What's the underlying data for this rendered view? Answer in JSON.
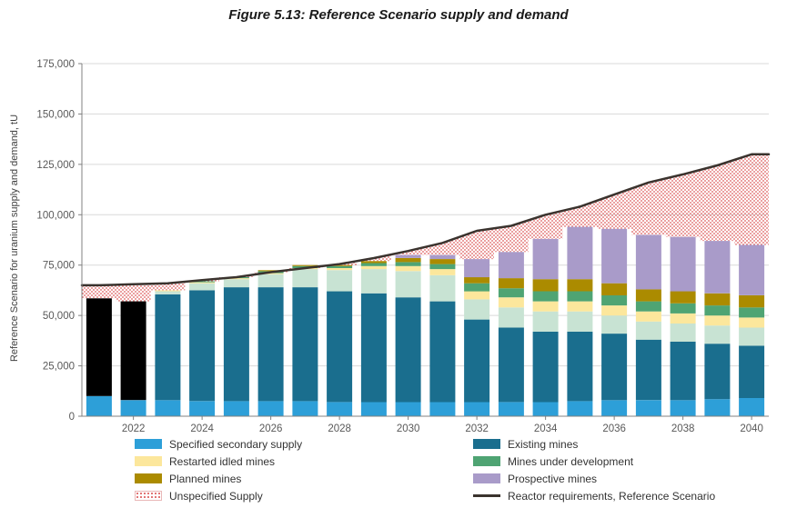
{
  "chart_data": {
    "type": "bar",
    "stacked": true,
    "title": "Figure 5.13: Reference Scenario supply and demand",
    "ylabel": "Reference Scenario for uranium supply and demand, tU",
    "ylim": [
      0,
      175000
    ],
    "grid": true,
    "ytick_values": [
      0,
      25000,
      50000,
      75000,
      100000,
      125000,
      150000,
      175000
    ],
    "ytick_labels": [
      "0",
      "25,000",
      "50,000",
      "75,000",
      "100,000",
      "125,000",
      "150,000",
      "175,000"
    ],
    "years": [
      2021,
      2022,
      2023,
      2024,
      2025,
      2026,
      2027,
      2028,
      2029,
      2030,
      2031,
      2032,
      2033,
      2034,
      2035,
      2036,
      2037,
      2038,
      2039,
      2040
    ],
    "xtick_years": [
      2022,
      2024,
      2026,
      2028,
      2030,
      2032,
      2034,
      2036,
      2038,
      2040
    ],
    "series": [
      {
        "name": "Specified secondary supply",
        "color": "#2D9FD8",
        "values": [
          10000,
          8000,
          8000,
          7500,
          7500,
          7500,
          7500,
          7000,
          7000,
          7000,
          7000,
          7000,
          7000,
          7000,
          7500,
          8000,
          8000,
          8000,
          8500,
          9000
        ]
      },
      {
        "name": "Unlabelled black segment (2021-2022)",
        "color": "#000000",
        "values": [
          48500,
          49000,
          0,
          0,
          0,
          0,
          0,
          0,
          0,
          0,
          0,
          0,
          0,
          0,
          0,
          0,
          0,
          0,
          0,
          0
        ]
      },
      {
        "name": "Existing mines",
        "color": "#1A6E8E",
        "values": [
          0,
          0,
          52500,
          55000,
          56500,
          56500,
          56500,
          55000,
          54000,
          52000,
          50000,
          41000,
          37000,
          35000,
          34500,
          33000,
          30000,
          29000,
          27500,
          26000
        ]
      },
      {
        "name": "Unlabelled pale green segment",
        "color": "#C8E3D3",
        "values": [
          0,
          0,
          1500,
          3500,
          4000,
          6500,
          9000,
          10500,
          12000,
          13000,
          13000,
          10000,
          10000,
          10000,
          10000,
          9000,
          9000,
          9000,
          9000,
          9000
        ]
      },
      {
        "name": "Restarted idled mines",
        "color": "#FCE79C",
        "values": [
          0,
          0,
          500,
          500,
          500,
          500,
          500,
          1000,
          1500,
          2500,
          3000,
          4000,
          5000,
          5000,
          5000,
          5000,
          5000,
          5000,
          5000,
          5000
        ]
      },
      {
        "name": "Mines under development",
        "color": "#4FA473",
        "values": [
          0,
          0,
          0,
          500,
          500,
          1000,
          1000,
          1000,
          1500,
          2000,
          2500,
          4000,
          4500,
          5000,
          5000,
          5000,
          5000,
          5000,
          5000,
          5000
        ]
      },
      {
        "name": "Planned mines",
        "color": "#AB8B00",
        "values": [
          0,
          0,
          0,
          0,
          0,
          500,
          500,
          500,
          1000,
          2000,
          2500,
          3000,
          5000,
          6000,
          6000,
          6000,
          6000,
          6000,
          6000,
          6000
        ]
      },
      {
        "name": "Prospective mines",
        "color": "#A99BC9",
        "values": [
          0,
          0,
          0,
          0,
          0,
          0,
          0,
          0,
          0,
          1500,
          2000,
          9000,
          13000,
          20000,
          26000,
          27000,
          27000,
          27000,
          26000,
          25000
        ]
      }
    ],
    "unspecified_supply": {
      "name": "Unspecified Supply",
      "pattern": "red-dots",
      "color": "#DD5C5C"
    },
    "line_series": {
      "name": "Reactor requirements, Reference Scenario",
      "color": "#3A332E",
      "values": [
        65000,
        65500,
        66000,
        67500,
        69000,
        71500,
        73500,
        75500,
        78500,
        82000,
        86000,
        92000,
        94500,
        100000,
        104000,
        110000,
        116000,
        120000,
        124500,
        130000
      ]
    },
    "legend": {
      "columns": [
        [
          {
            "label": "Specified secondary supply",
            "swatch": "rect",
            "color": "#2D9FD8"
          },
          {
            "label": "Restarted idled mines",
            "swatch": "rect",
            "color": "#FCE79C"
          },
          {
            "label": "Planned mines",
            "swatch": "rect",
            "color": "#AB8B00"
          },
          {
            "label": "Unspecified Supply",
            "swatch": "dots",
            "color": "#DD5C5C"
          }
        ],
        [
          {
            "label": "Existing mines",
            "swatch": "rect",
            "color": "#1A6E8E"
          },
          {
            "label": "Mines under development",
            "swatch": "rect",
            "color": "#4FA473"
          },
          {
            "label": "Prospective mines",
            "swatch": "rect",
            "color": "#A99BC9"
          },
          {
            "label": "Reactor requirements, Reference Scenario",
            "swatch": "line",
            "color": "#3A332E"
          }
        ]
      ]
    }
  }
}
